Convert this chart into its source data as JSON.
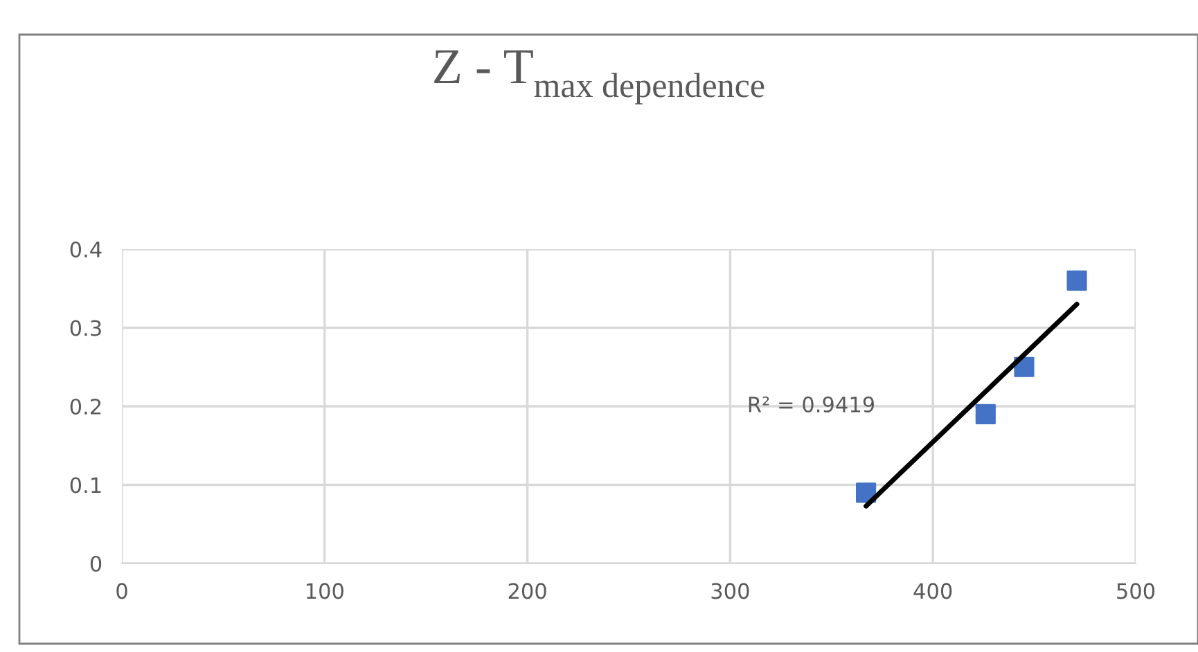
{
  "chart_data": {
    "type": "scatter",
    "title": "Z - T$_{max dependence}$",
    "x": [
      367,
      426,
      445,
      471
    ],
    "series": [
      {
        "color": "#4472c4",
        "values": [
          0.09,
          0.19,
          0.25,
          0.36
        ],
        "marker": "square"
      },
      {
        "type": "line",
        "color": "#000000",
        "x": [
          367,
          471
        ],
        "values": [
          0.073,
          0.33
        ],
        "marker": "none"
      }
    ],
    "annotations": [
      "R² = 0.9419"
    ],
    "xlim": [
      0,
      500
    ],
    "xticks": [
      0,
      100,
      200,
      300,
      400,
      500
    ],
    "ylim": [
      0,
      0.4
    ],
    "yticks": [
      0,
      0.1,
      0.2,
      0.3,
      0.4
    ],
    "grid": true
  }
}
